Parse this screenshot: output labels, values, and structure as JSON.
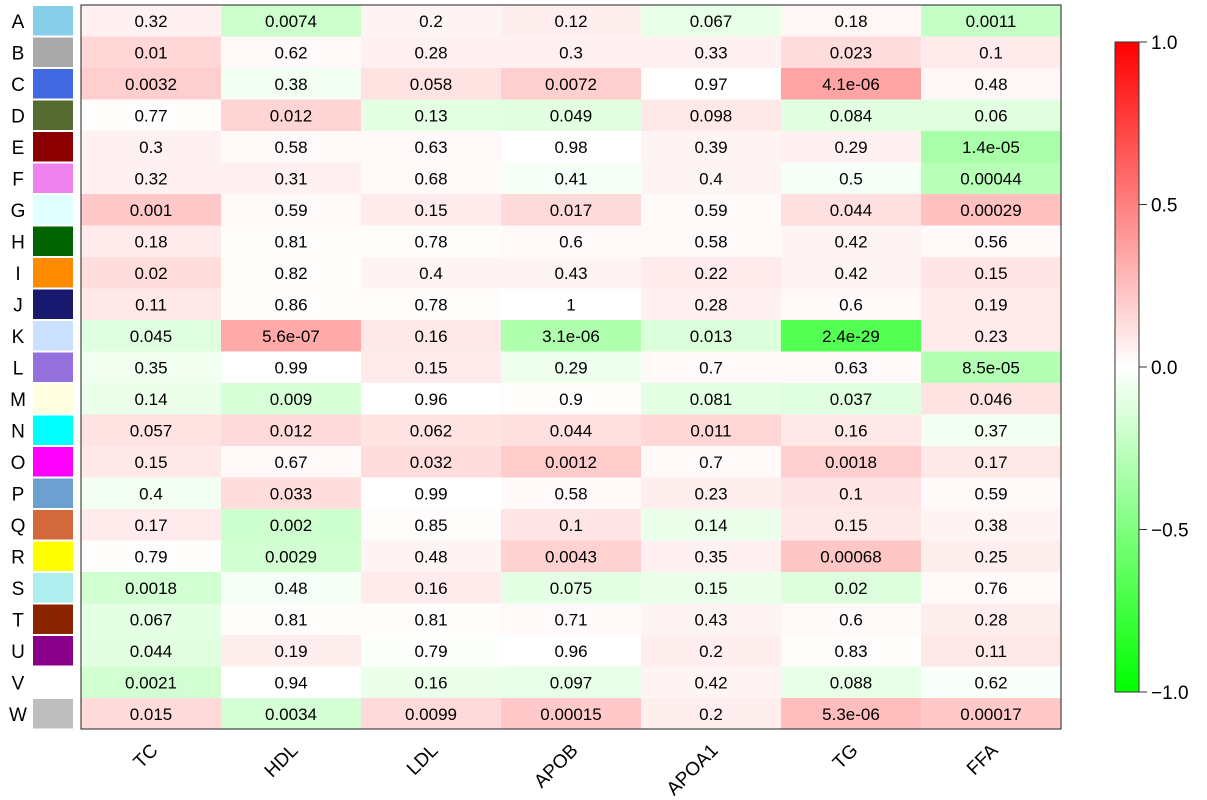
{
  "chart_data": {
    "type": "heatmap",
    "title": "",
    "xlabel": "",
    "ylabel": "",
    "columns": [
      "TC",
      "HDL",
      "LDL",
      "APOB",
      "APOA1",
      "TG",
      "FFA"
    ],
    "rows": [
      {
        "label": "A",
        "color": "#87ceeb",
        "values": [
          0.05,
          -0.18,
          0.04,
          0.06,
          -0.08,
          0.03,
          -0.2
        ],
        "pvalues": [
          "0.32",
          "0.0074",
          "0.2",
          "0.12",
          "0.067",
          "0.18",
          "0.0011"
        ]
      },
      {
        "label": "B",
        "color": "#a9a9a9",
        "values": [
          0.14,
          0.02,
          0.05,
          0.05,
          0.05,
          0.12,
          0.07
        ],
        "pvalues": [
          "0.01",
          "0.62",
          "0.28",
          "0.3",
          "0.33",
          "0.023",
          "0.1"
        ]
      },
      {
        "label": "C",
        "color": "#4169e1",
        "values": [
          0.17,
          -0.04,
          0.1,
          0.17,
          0.0,
          0.32,
          0.03
        ],
        "pvalues": [
          "0.0032",
          "0.38",
          "0.058",
          "0.0072",
          "0.97",
          "4.1e-06",
          "0.48"
        ]
      },
      {
        "label": "D",
        "color": "#556b2f",
        "values": [
          0.01,
          0.15,
          -0.09,
          -0.1,
          0.08,
          -0.1,
          -0.1
        ],
        "pvalues": [
          "0.77",
          "0.012",
          "0.13",
          "0.049",
          "0.098",
          "0.084",
          "0.06"
        ]
      },
      {
        "label": "E",
        "color": "#8b0000",
        "values": [
          0.05,
          0.02,
          0.02,
          0.0,
          0.04,
          0.05,
          -0.3
        ],
        "pvalues": [
          "0.3",
          "0.58",
          "0.63",
          "0.98",
          "0.39",
          "0.29",
          "1.4e-05"
        ]
      },
      {
        "label": "F",
        "color": "#ee82ee",
        "values": [
          0.05,
          0.05,
          0.02,
          -0.03,
          0.04,
          -0.03,
          -0.25
        ],
        "pvalues": [
          "0.32",
          "0.31",
          "0.68",
          "0.41",
          "0.4",
          "0.5",
          "0.00044"
        ]
      },
      {
        "label": "G",
        "color": "#e0ffff",
        "values": [
          0.19,
          0.02,
          0.07,
          0.13,
          0.02,
          0.11,
          0.22
        ],
        "pvalues": [
          "0.001",
          "0.59",
          "0.15",
          "0.017",
          "0.59",
          "0.044",
          "0.00029"
        ]
      },
      {
        "label": "H",
        "color": "#006400",
        "values": [
          0.07,
          0.01,
          0.01,
          0.02,
          0.02,
          0.04,
          0.02
        ],
        "pvalues": [
          "0.18",
          "0.81",
          "0.78",
          "0.6",
          "0.58",
          "0.42",
          "0.56"
        ]
      },
      {
        "label": "I",
        "color": "#ff8c00",
        "values": [
          0.12,
          0.01,
          0.04,
          0.04,
          0.07,
          0.04,
          0.09
        ],
        "pvalues": [
          "0.02",
          "0.82",
          "0.4",
          "0.43",
          "0.22",
          "0.42",
          "0.15"
        ]
      },
      {
        "label": "J",
        "color": "#191970",
        "values": [
          0.08,
          0.01,
          0.01,
          0.0,
          0.05,
          0.02,
          0.07
        ],
        "pvalues": [
          "0.11",
          "0.86",
          "0.78",
          "1",
          "0.28",
          "0.6",
          "0.19"
        ]
      },
      {
        "label": "K",
        "color": "#cce0ff",
        "values": [
          -0.11,
          0.3,
          0.08,
          -0.28,
          -0.13,
          -0.6,
          0.07
        ],
        "pvalues": [
          "0.045",
          "5.6e-07",
          "0.16",
          "3.1e-06",
          "0.013",
          "2.4e-29",
          "0.23"
        ]
      },
      {
        "label": "L",
        "color": "#9370db",
        "values": [
          -0.05,
          0.0,
          0.07,
          -0.06,
          0.02,
          0.02,
          -0.26
        ],
        "pvalues": [
          "0.35",
          "0.99",
          "0.15",
          "0.29",
          "0.7",
          "0.63",
          "8.5e-05"
        ]
      },
      {
        "label": "M",
        "color": "#ffffe0",
        "values": [
          -0.07,
          -0.14,
          0.0,
          0.01,
          -0.09,
          -0.11,
          0.1
        ],
        "pvalues": [
          "0.14",
          "0.009",
          "0.96",
          "0.9",
          "0.081",
          "0.037",
          "0.046"
        ]
      },
      {
        "label": "N",
        "color": "#00ffff",
        "values": [
          0.1,
          0.13,
          0.1,
          0.11,
          0.14,
          0.08,
          -0.04
        ],
        "pvalues": [
          "0.057",
          "0.012",
          "0.062",
          "0.044",
          "0.011",
          "0.16",
          "0.37"
        ]
      },
      {
        "label": "O",
        "color": "#ff00ff",
        "values": [
          0.08,
          0.02,
          0.12,
          0.18,
          0.02,
          0.17,
          0.08
        ],
        "pvalues": [
          "0.15",
          "0.67",
          "0.032",
          "0.0012",
          "0.7",
          "0.0018",
          "0.17"
        ]
      },
      {
        "label": "P",
        "color": "#6ca0d0",
        "values": [
          -0.04,
          0.12,
          0.0,
          0.02,
          0.06,
          0.09,
          0.02
        ],
        "pvalues": [
          "0.4",
          "0.033",
          "0.99",
          "0.58",
          "0.23",
          "0.1",
          "0.59"
        ]
      },
      {
        "label": "Q",
        "color": "#d2693c",
        "values": [
          0.07,
          -0.17,
          0.01,
          0.09,
          -0.07,
          0.08,
          0.04
        ],
        "pvalues": [
          "0.17",
          "0.002",
          "0.85",
          "0.1",
          "0.14",
          "0.15",
          "0.38"
        ]
      },
      {
        "label": "R",
        "color": "#ffff00",
        "values": [
          0.01,
          -0.16,
          0.04,
          0.16,
          0.05,
          0.2,
          0.06
        ],
        "pvalues": [
          "0.79",
          "0.0029",
          "0.48",
          "0.0043",
          "0.35",
          "0.00068",
          "0.25"
        ]
      },
      {
        "label": "S",
        "color": "#aeeeee",
        "values": [
          -0.16,
          -0.03,
          0.07,
          -0.09,
          -0.07,
          -0.12,
          0.02
        ],
        "pvalues": [
          "0.0018",
          "0.48",
          "0.16",
          "0.075",
          "0.15",
          "0.02",
          "0.76"
        ]
      },
      {
        "label": "T",
        "color": "#8b2500",
        "values": [
          -0.09,
          0.01,
          0.01,
          0.02,
          0.04,
          0.02,
          0.06
        ],
        "pvalues": [
          "0.067",
          "0.81",
          "0.81",
          "0.71",
          "0.43",
          "0.6",
          "0.28"
        ]
      },
      {
        "label": "U",
        "color": "#8b008b",
        "values": [
          -0.1,
          0.06,
          -0.01,
          0.0,
          0.06,
          0.01,
          0.08
        ],
        "pvalues": [
          "0.044",
          "0.19",
          "0.79",
          "0.96",
          "0.2",
          "0.83",
          "0.11"
        ]
      },
      {
        "label": "V",
        "color": "#ffffff",
        "values": [
          -0.16,
          0.0,
          -0.07,
          -0.08,
          0.04,
          -0.08,
          -0.02
        ],
        "pvalues": [
          "0.0021",
          "0.94",
          "0.16",
          "0.097",
          "0.42",
          "0.088",
          "0.62"
        ]
      },
      {
        "label": "W",
        "color": "#bebebe",
        "values": [
          0.13,
          -0.15,
          0.13,
          0.19,
          0.06,
          0.23,
          0.19
        ],
        "pvalues": [
          "0.015",
          "0.0034",
          "0.0099",
          "0.00015",
          "0.2",
          "5.3e-06",
          "0.00017"
        ]
      }
    ],
    "color_scale": {
      "min": -1.0,
      "max": 1.0,
      "low_color": "#00ff00",
      "mid_color": "#ffffff",
      "high_color": "#ff0000",
      "ticks": [
        {
          "value": 1.0,
          "label": "1.0"
        },
        {
          "value": 0.5,
          "label": "0.5"
        },
        {
          "value": 0.0,
          "label": "0.0"
        },
        {
          "value": -0.5,
          "label": "−0.5"
        },
        {
          "value": -1.0,
          "label": "−1.0"
        }
      ],
      "legend_position": "right"
    }
  }
}
